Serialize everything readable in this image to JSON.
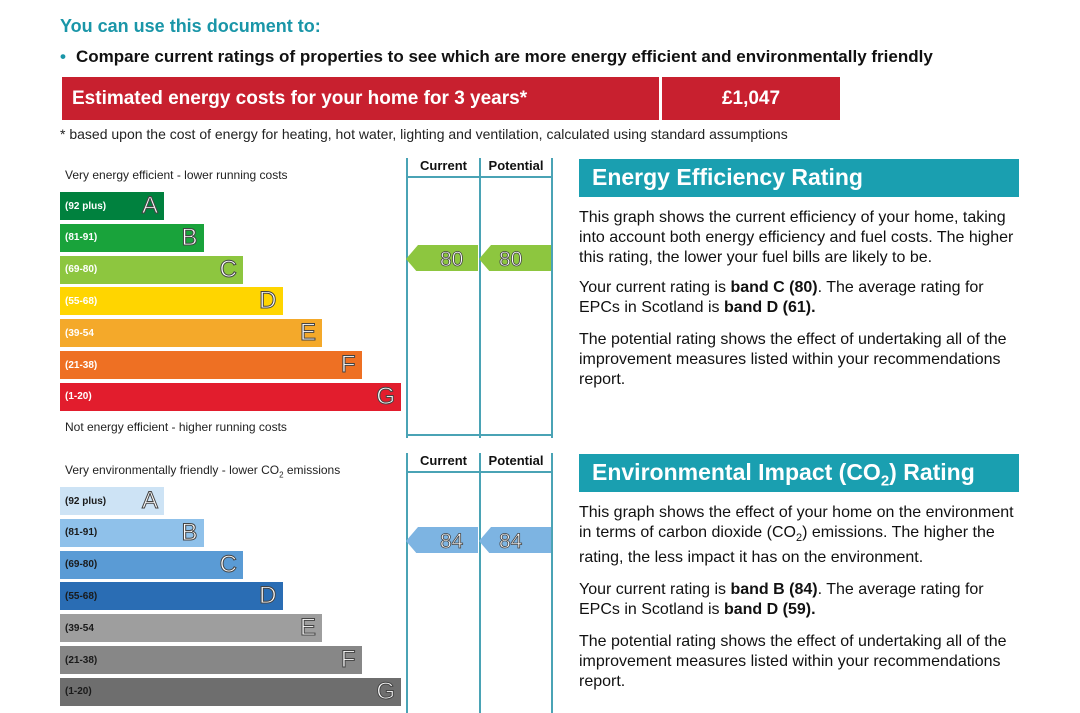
{
  "intro": {
    "heading": "You can use this document to:",
    "bullet": "Compare current ratings of properties to see which are more energy efficient and environmentally friendly"
  },
  "cost": {
    "label": "Estimated energy costs for your home for 3 years*",
    "value": "£1,047",
    "footnote": "* based upon the cost of energy for heating, hot water, lighting and ventilation, calculated using standard assumptions"
  },
  "columns": {
    "current": "Current",
    "potential": "Potential"
  },
  "energy": {
    "top_label": "Very energy efficient - lower running costs",
    "bottom_label": "Not energy efficient - higher running costs",
    "current": "80",
    "potential": "80",
    "arrow_color": "#8dc63f",
    "bands": [
      {
        "range": "(92 plus)",
        "letter": "A",
        "color": "#00813e"
      },
      {
        "range": "(81-91)",
        "letter": "B",
        "color": "#19a33b"
      },
      {
        "range": "(69-80)",
        "letter": "C",
        "color": "#8dc63f"
      },
      {
        "range": "(55-68)",
        "letter": "D",
        "color": "#ffd500"
      },
      {
        "range": "(39-54",
        "letter": "E",
        "color": "#f4a92a"
      },
      {
        "range": "(21-38)",
        "letter": "F",
        "color": "#ee7023"
      },
      {
        "range": "(1-20)",
        "letter": "G",
        "color": "#e21d2d"
      }
    ]
  },
  "environment": {
    "top_label_pre": "Very environmentally friendly - lower CO",
    "top_label_sub": "2",
    "top_label_post": " emissions",
    "current": "84",
    "potential": "84",
    "arrow_color": "#7db4e2",
    "bands": [
      {
        "range": "(92 plus)",
        "letter": "A",
        "color": "#cde3f5",
        "dark": true
      },
      {
        "range": "(81-91)",
        "letter": "B",
        "color": "#8fc1ea",
        "dark": true
      },
      {
        "range": "(69-80)",
        "letter": "C",
        "color": "#5a9bd5",
        "dark": true
      },
      {
        "range": "(55-68)",
        "letter": "D",
        "color": "#2a6db4",
        "dark": true
      },
      {
        "range": "(39-54",
        "letter": "E",
        "color": "#9e9e9e",
        "dark": true
      },
      {
        "range": "(21-38)",
        "letter": "F",
        "color": "#878787",
        "dark": true
      },
      {
        "range": "(1-20)",
        "letter": "G",
        "color": "#6e6e6e",
        "dark": true
      }
    ]
  },
  "eer_panel": {
    "title": "Energy Efficiency Rating",
    "p1": "This graph shows the current efficiency of your home, taking into account both energy efficiency and fuel costs. The higher this rating, the lower your fuel bills are likely to be.",
    "p2_pre": "Your current rating is ",
    "p2_b1": "band C (80)",
    "p2_mid": ". The average rating for EPCs in Scotland is ",
    "p2_b2": "band D (61).",
    "p3": "The potential rating shows the effect of undertaking all of the improvement measures listed within your recommendations report."
  },
  "eir_panel": {
    "title_pre": "Environmental Impact (CO",
    "title_sub": "2",
    "title_post": ") Rating",
    "p1_pre": "This graph shows the effect of your home on the environment in terms of carbon dioxide (CO",
    "p1_sub": "2",
    "p1_post": ") emissions. The higher the rating, the less impact it has on the environment.",
    "p2_pre": "Your current rating is ",
    "p2_b1": "band B (84)",
    "p2_mid": ". The average rating for EPCs in Scotland is ",
    "p2_b2": "band D (59).",
    "p3": "The potential rating shows the effect of undertaking all of the improvement measures listed within your recommendations report."
  }
}
